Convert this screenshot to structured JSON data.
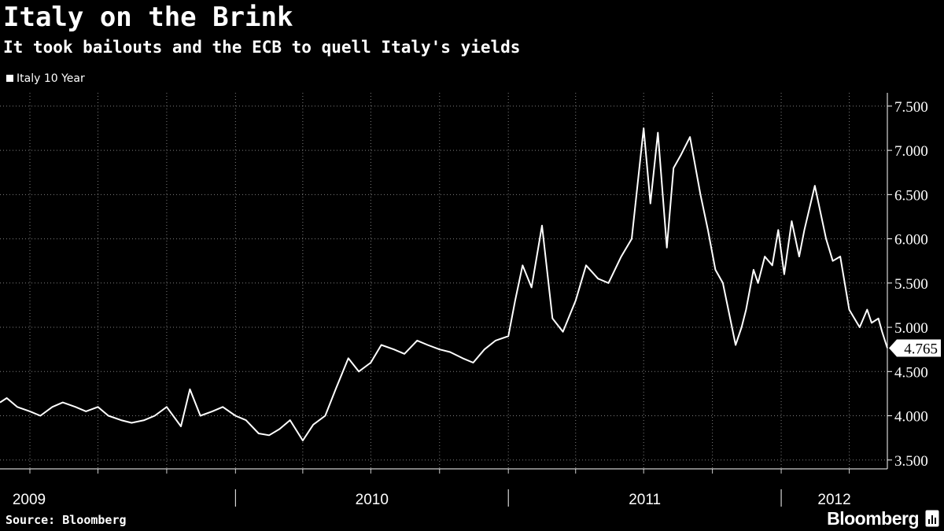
{
  "header": {
    "title": "Italy on the Brink",
    "subtitle": "It took bailouts and the ECB to quell Italy's yields"
  },
  "footer": {
    "source": "Source: Bloomberg",
    "brand": "Bloomberg"
  },
  "colors": {
    "background": "#000000",
    "line": "#ffffff",
    "grid": "#7f7f7f"
  },
  "chart_data": {
    "type": "line",
    "title": "Italy on the Brink",
    "subtitle": "It took bailouts and the ECB to quell Italy's yields",
    "legend_placement": "top-left",
    "grid": true,
    "yaxis_side": "right",
    "ylim": [
      3.4,
      7.65
    ],
    "yticks": [
      3.5,
      4.0,
      4.5,
      5.0,
      5.5,
      6.0,
      6.5,
      7.0,
      7.5
    ],
    "ytick_labels": [
      "3.500",
      "4.000",
      "4.500",
      "5.000",
      "5.500",
      "6.000",
      "6.500",
      "7.000",
      "7.500"
    ],
    "xlim": [
      "2009-02-20",
      "2012-05-22"
    ],
    "xtick_labels": [
      "2009",
      "2010",
      "2011",
      "2012"
    ],
    "xtick_label_dates": [
      "2009-04-20",
      "2010-01-01",
      "2011-01-01",
      "2012-01-01"
    ],
    "last_value_label": "4.765",
    "series": [
      {
        "name": "Italy 10 Year",
        "color": "#ffffff",
        "x": [
          "2009-02-20",
          "2009-03-01",
          "2009-03-15",
          "2009-04-01",
          "2009-04-15",
          "2009-05-01",
          "2009-05-15",
          "2009-06-01",
          "2009-06-15",
          "2009-07-01",
          "2009-07-15",
          "2009-08-01",
          "2009-08-15",
          "2009-09-01",
          "2009-09-15",
          "2009-10-01",
          "2009-10-20",
          "2009-11-01",
          "2009-11-15",
          "2009-12-01",
          "2009-12-15",
          "2010-01-01",
          "2010-01-15",
          "2010-02-01",
          "2010-02-15",
          "2010-03-01",
          "2010-03-15",
          "2010-04-01",
          "2010-04-15",
          "2010-05-01",
          "2010-05-15",
          "2010-06-01",
          "2010-06-15",
          "2010-07-01",
          "2010-07-15",
          "2010-08-01",
          "2010-08-15",
          "2010-09-01",
          "2010-09-15",
          "2010-10-01",
          "2010-10-15",
          "2010-11-01",
          "2010-11-15",
          "2010-11-30",
          "2010-12-15",
          "2011-01-01",
          "2011-01-10",
          "2011-01-20",
          "2011-02-01",
          "2011-02-15",
          "2011-03-01",
          "2011-03-15",
          "2011-04-01",
          "2011-04-15",
          "2011-05-01",
          "2011-05-15",
          "2011-06-01",
          "2011-06-15",
          "2011-07-01",
          "2011-07-10",
          "2011-07-20",
          "2011-08-01",
          "2011-08-10",
          "2011-08-20",
          "2011-09-01",
          "2011-09-15",
          "2011-09-25",
          "2011-10-05",
          "2011-10-15",
          "2011-11-01",
          "2011-11-09",
          "2011-11-15",
          "2011-11-25",
          "2011-12-01",
          "2011-12-10",
          "2011-12-20",
          "2011-12-28",
          "2012-01-05",
          "2012-01-15",
          "2012-01-25",
          "2012-02-01",
          "2012-02-15",
          "2012-03-01",
          "2012-03-10",
          "2012-03-20",
          "2012-04-01",
          "2012-04-15",
          "2012-04-25",
          "2012-05-01",
          "2012-05-10",
          "2012-05-15",
          "2012-05-22"
        ],
        "values": [
          4.15,
          4.2,
          4.1,
          4.05,
          4.0,
          4.1,
          4.15,
          4.1,
          4.05,
          4.1,
          4.0,
          3.95,
          3.92,
          3.95,
          4.0,
          4.1,
          3.88,
          4.3,
          4.0,
          4.05,
          4.1,
          4.0,
          3.95,
          3.8,
          3.78,
          3.85,
          3.95,
          3.72,
          3.9,
          4.0,
          4.3,
          4.65,
          4.5,
          4.6,
          4.8,
          4.75,
          4.7,
          4.85,
          4.8,
          4.75,
          4.72,
          4.65,
          4.6,
          4.75,
          4.85,
          4.9,
          5.3,
          5.7,
          5.45,
          6.15,
          5.1,
          4.95,
          5.3,
          5.7,
          5.55,
          5.5,
          5.8,
          6.0,
          7.25,
          6.4,
          7.2,
          5.9,
          6.8,
          6.95,
          7.15,
          6.5,
          6.1,
          5.65,
          5.5,
          4.8,
          5.0,
          5.2,
          5.65,
          5.5,
          5.8,
          5.7,
          6.1,
          5.6,
          6.2,
          5.8,
          6.1,
          6.6,
          6.0,
          5.75,
          5.8,
          5.2,
          5.0,
          5.2,
          5.05,
          5.1,
          4.95,
          4.765
        ]
      }
    ]
  }
}
